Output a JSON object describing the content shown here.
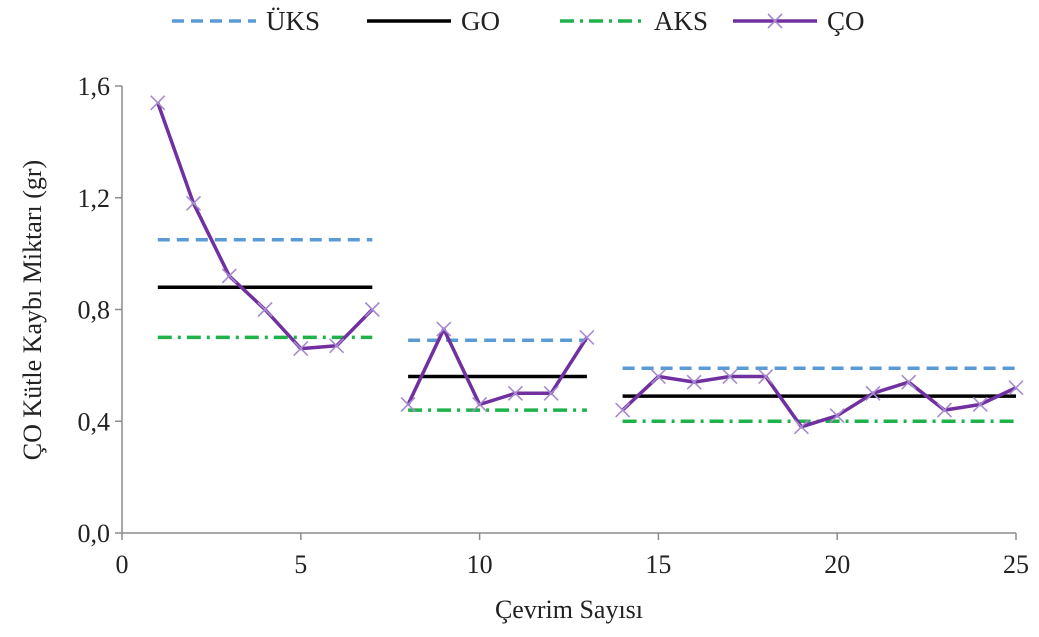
{
  "chart_data": {
    "type": "line",
    "xlabel": "Çevrim Sayısı",
    "ylabel": "ÇO Kütle Kaybı Miktarı (gr)",
    "xlim": [
      0,
      25
    ],
    "ylim": [
      0,
      1.6
    ],
    "x_ticks": [
      "0",
      "5",
      "10",
      "15",
      "20",
      "25"
    ],
    "y_ticks": [
      "0,0",
      "0,4",
      "0,8",
      "1,2",
      "1,6"
    ],
    "x_tick_values": [
      0,
      5,
      10,
      15,
      20,
      25
    ],
    "y_tick_values": [
      0,
      0.4,
      0.8,
      1.2,
      1.6
    ],
    "legend_position": "top",
    "series": [
      {
        "name": "ÜKS",
        "color": "#5b9bd5",
        "style": "dashed",
        "segments": [
          {
            "x": [
              1,
              7
            ],
            "y": [
              1.05,
              1.05
            ]
          },
          {
            "x": [
              8,
              13
            ],
            "y": [
              0.69,
              0.69
            ]
          },
          {
            "x": [
              14,
              25
            ],
            "y": [
              0.59,
              0.59
            ]
          }
        ]
      },
      {
        "name": "GO",
        "color": "#000000",
        "style": "solid",
        "segments": [
          {
            "x": [
              1,
              7
            ],
            "y": [
              0.88,
              0.88
            ]
          },
          {
            "x": [
              8,
              13
            ],
            "y": [
              0.56,
              0.56
            ]
          },
          {
            "x": [
              14,
              25
            ],
            "y": [
              0.49,
              0.49
            ]
          }
        ]
      },
      {
        "name": "AKS",
        "color": "#1fb24a",
        "style": "dash-dot",
        "segments": [
          {
            "x": [
              1,
              7
            ],
            "y": [
              0.7,
              0.7
            ]
          },
          {
            "x": [
              8,
              13
            ],
            "y": [
              0.44,
              0.44
            ]
          },
          {
            "x": [
              14,
              25
            ],
            "y": [
              0.4,
              0.4
            ]
          }
        ]
      },
      {
        "name": "ÇO",
        "color": "#7030a0",
        "style": "solid-x-markers",
        "segments": [
          {
            "x": [
              1,
              2,
              3,
              4,
              5,
              6,
              7
            ],
            "y": [
              1.54,
              1.18,
              0.92,
              0.8,
              0.66,
              0.67,
              0.8
            ]
          },
          {
            "x": [
              8,
              9,
              10,
              11,
              12,
              13
            ],
            "y": [
              0.46,
              0.73,
              0.46,
              0.5,
              0.5,
              0.7
            ]
          },
          {
            "x": [
              14,
              15,
              16,
              17,
              18,
              19,
              20,
              21,
              22,
              23,
              24,
              25
            ],
            "y": [
              0.44,
              0.56,
              0.54,
              0.56,
              0.56,
              0.38,
              0.42,
              0.5,
              0.54,
              0.44,
              0.46,
              0.52
            ]
          }
        ]
      }
    ]
  }
}
